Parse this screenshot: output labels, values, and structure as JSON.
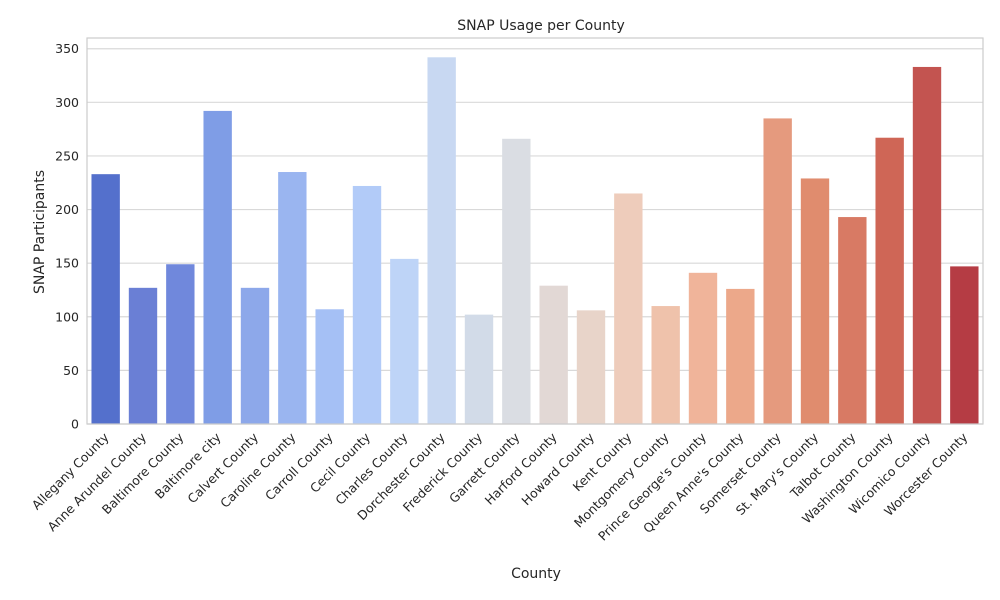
{
  "chart_data": {
    "type": "bar",
    "title": "SNAP Usage per County",
    "xlabel": "County",
    "ylabel": "SNAP Participants",
    "ylim": [
      0,
      360
    ],
    "yticks": [
      0,
      50,
      100,
      150,
      200,
      250,
      300,
      350
    ],
    "grid": "horizontal",
    "palette": "coolwarm",
    "categories": [
      "Allegany County",
      "Anne Arundel County",
      "Baltimore County",
      "Baltimore city",
      "Calvert County",
      "Caroline County",
      "Carroll County",
      "Cecil County",
      "Charles County",
      "Dorchester County",
      "Frederick County",
      "Garrett County",
      "Harford County",
      "Howard County",
      "Kent County",
      "Montgomery County",
      "Prince George's County",
      "Queen Anne's County",
      "Somerset County",
      "St. Mary's County",
      "Talbot County",
      "Washington County",
      "Wicomico County",
      "Worcester County"
    ],
    "values": [
      233,
      127,
      149,
      292,
      127,
      235,
      107,
      222,
      154,
      342,
      102,
      266,
      129,
      106,
      215,
      110,
      141,
      126,
      285,
      229,
      193,
      267,
      333,
      147
    ],
    "colors": [
      "#5470cc",
      "#6a7fd5",
      "#7088dc",
      "#7f9de6",
      "#8da8ea",
      "#9ab5f0",
      "#a5c0f5",
      "#b2cbf8",
      "#bed4f7",
      "#c8d8f2",
      "#d2dbe8",
      "#dadde3",
      "#e2d8d5",
      "#e8d4c9",
      "#eeccbb",
      "#efc2ab",
      "#f0b49a",
      "#eca88a",
      "#e59a7e",
      "#e08c6e",
      "#d87a64",
      "#cf6656",
      "#c35450",
      "#b53c44"
    ]
  }
}
